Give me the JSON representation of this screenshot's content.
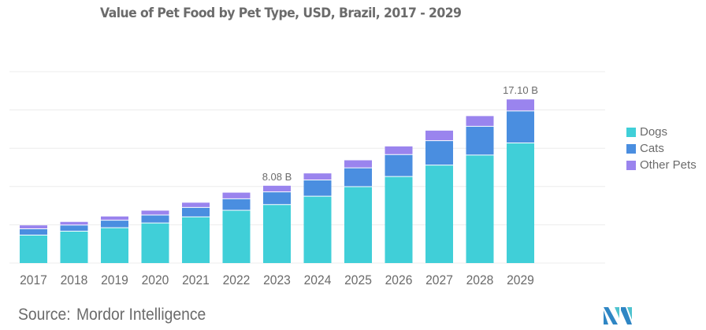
{
  "title": "Value of Pet Food by Pet Type, USD, Brazil, 2017 - 2029",
  "source_label": "Source:",
  "source_name": "Mordor Intelligence",
  "logo_icon": "mordor-intelligence-logo-icon",
  "colors": {
    "Dogs": "#40cfd8",
    "Cats": "#4a8ee0",
    "Other Pets": "#9a84ee",
    "grid": "#ececec",
    "text": "#6b6b6b"
  },
  "chart_data": {
    "type": "bar",
    "stacked": true,
    "title": "Value of Pet Food by Pet Type, USD, Brazil, 2017 - 2029",
    "xlabel": "",
    "ylabel": "",
    "ylim": [
      0,
      20
    ],
    "grid": true,
    "gridlines": [
      4,
      8,
      12,
      16,
      20
    ],
    "legend_position": "right",
    "categories": [
      "2017",
      "2018",
      "2019",
      "2020",
      "2021",
      "2022",
      "2023",
      "2024",
      "2025",
      "2026",
      "2027",
      "2028",
      "2029"
    ],
    "series": [
      {
        "name": "Dogs",
        "values": [
          2.92,
          3.33,
          3.69,
          4.19,
          4.82,
          5.51,
          6.11,
          6.99,
          7.98,
          9.04,
          10.24,
          11.29,
          12.55
        ]
      },
      {
        "name": "Cats",
        "values": [
          0.66,
          0.64,
          0.79,
          0.83,
          0.99,
          1.21,
          1.33,
          1.69,
          1.97,
          2.3,
          2.55,
          3.0,
          3.34
        ]
      },
      {
        "name": "Other Pets",
        "values": [
          0.36,
          0.33,
          0.39,
          0.46,
          0.5,
          0.64,
          0.64,
          0.69,
          0.79,
          0.85,
          1.05,
          1.07,
          1.21
        ]
      }
    ],
    "annotations": [
      {
        "category": "2023",
        "text": "8.08 B"
      },
      {
        "category": "2029",
        "text": "17.10 B"
      }
    ]
  }
}
